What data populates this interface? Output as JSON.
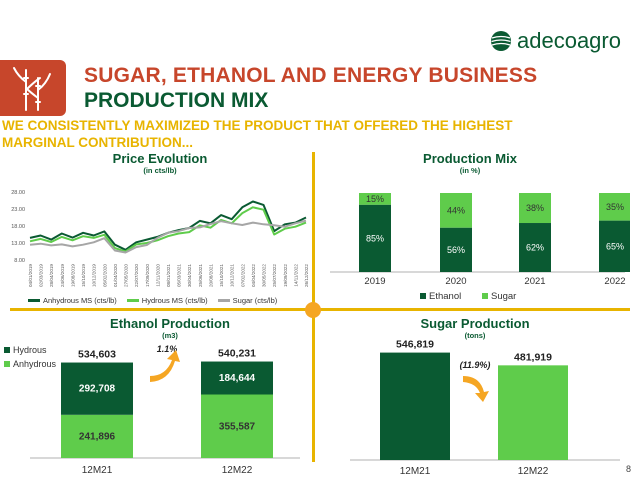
{
  "brand": {
    "name": "adecoagro"
  },
  "header": {
    "title_line1": "SUGAR, ETHANOL AND ENERGY BUSINESS",
    "title_line2": "PRODUCTION MIX",
    "subtitle_line1": "WE CONSISTENTLY MAXIMIZED THE PRODUCT THAT OFFERED THE HIGHEST",
    "subtitle_line2": "MARGINAL CONTRIBUTION..."
  },
  "page_number": "8",
  "colors": {
    "dark_green": "#0a5a32",
    "light_green": "#5fcc4b",
    "red": "#c7462b",
    "yellow": "#e8b400",
    "orange": "#f5a623",
    "gray": "#a6a6a6"
  },
  "chart_data": [
    {
      "id": "price_evolution",
      "type": "line",
      "title": "Price Evolution",
      "subtitle": "(in cts/lb)",
      "yticks": [
        "28.00",
        "23.00",
        "18.00",
        "13.00",
        "8.00"
      ],
      "ylim": [
        8,
        28
      ],
      "x": [
        "04/01/2019",
        "02/03/2019",
        "28/04/2019",
        "24/06/2019",
        "19/08/2019",
        "15/10/2019",
        "10/12/2019",
        "05/02/2020",
        "01/04/2020",
        "27/05/2020",
        "22/07/2020",
        "17/09/2020",
        "12/11/2020",
        "08/01/2021",
        "05/03/2021",
        "30/04/2021",
        "25/06/2021",
        "20/08/2021",
        "15/10/2021",
        "10/12/2021",
        "07/02/2022",
        "04/04/2022",
        "30/05/2022",
        "25/07/2022",
        "19/09/2022",
        "14/11/2022",
        "26/12/2022"
      ],
      "series": [
        {
          "name": "Anhydrous MS (cts/lb)",
          "color": "#0a5a32",
          "values": [
            14.5,
            15.2,
            14.0,
            15.8,
            14.6,
            16.0,
            15.2,
            16.4,
            12.5,
            11.0,
            13.2,
            14.0,
            14.8,
            16.0,
            16.8,
            17.4,
            19.5,
            18.8,
            21.2,
            20.0,
            23.5,
            25.2,
            24.2,
            16.5,
            18.5,
            19.0,
            20.5
          ]
        },
        {
          "name": "Hydrous MS (cts/lb)",
          "color": "#5fcc4b",
          "values": [
            13.5,
            14.2,
            13.3,
            14.8,
            13.8,
            15.0,
            14.5,
            15.4,
            11.5,
            10.5,
            12.6,
            13.0,
            13.8,
            15.0,
            15.8,
            16.2,
            18.2,
            17.5,
            19.8,
            18.8,
            21.8,
            23.5,
            22.8,
            15.5,
            17.2,
            17.8,
            19.0
          ]
        },
        {
          "name": "Sugar (cts/lb)",
          "color": "#a6a6a6",
          "values": [
            12.5,
            12.8,
            12.3,
            12.6,
            12.0,
            12.5,
            13.2,
            14.4,
            10.8,
            10.2,
            11.8,
            12.4,
            14.5,
            16.0,
            16.5,
            17.4,
            17.6,
            18.6,
            19.4,
            18.8,
            18.3,
            19.0,
            18.5,
            18.2,
            17.8,
            18.8,
            19.6
          ]
        }
      ]
    },
    {
      "id": "production_mix",
      "type": "bar",
      "stacked": true,
      "title": "Production Mix",
      "subtitle": "(in %)",
      "categories": [
        "2019",
        "2020",
        "2021",
        "2022"
      ],
      "series": [
        {
          "name": "Ethanol",
          "color": "#0a5a32",
          "values": [
            85,
            56,
            62,
            65
          ]
        },
        {
          "name": "Sugar",
          "color": "#5fcc4b",
          "values": [
            15,
            44,
            38,
            35
          ]
        }
      ]
    },
    {
      "id": "ethanol_production",
      "type": "bar",
      "stacked": true,
      "title": "Ethanol Production",
      "subtitle": "(m3)",
      "categories": [
        "12M21",
        "12M22"
      ],
      "totals": [
        534603,
        540231
      ],
      "total_labels": [
        "534,603",
        "540,231"
      ],
      "change_label": "1.1%",
      "series": [
        {
          "name": "Hydrous",
          "color": "#0a5a32",
          "values": [
            292708,
            184644
          ],
          "labels": [
            "292,708",
            "184,644"
          ]
        },
        {
          "name": "Anhydrous",
          "color": "#5fcc4b",
          "values": [
            241896,
            355587
          ],
          "labels": [
            "241,896",
            "355,587"
          ]
        }
      ]
    },
    {
      "id": "sugar_production",
      "type": "bar",
      "title": "Sugar Production",
      "subtitle": "(tons)",
      "categories": [
        "12M21",
        "12M22"
      ],
      "values": [
        546819,
        481919
      ],
      "value_labels": [
        "546,819",
        "481,919"
      ],
      "colors": [
        "#0a5a32",
        "#5fcc4b"
      ],
      "change_label": "(11.9%)"
    }
  ]
}
